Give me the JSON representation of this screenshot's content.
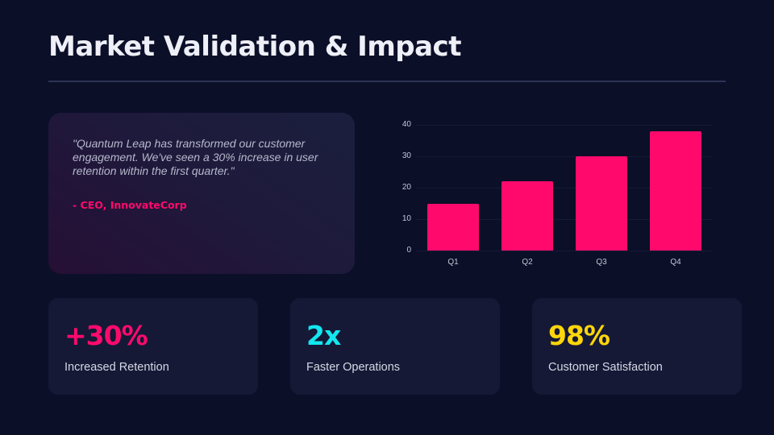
{
  "header": {
    "title": "Market Validation & Impact"
  },
  "testimonial": {
    "quote": "\"Quantum Leap has transformed our customer engagement. We've seen a 30% increase in user retention within the first quarter.\"",
    "author": "- CEO, InnovateCorp"
  },
  "chart_data": {
    "type": "bar",
    "title": "",
    "xlabel": "",
    "ylabel": "",
    "categories": [
      "Q1",
      "Q2",
      "Q3",
      "Q4"
    ],
    "values": [
      15,
      22,
      30,
      38
    ],
    "ylim": [
      0,
      40
    ],
    "yticks": [
      0,
      10,
      20,
      30,
      40
    ],
    "grid": true,
    "legend": false,
    "bar_color": "#ff0a6c"
  },
  "stats": [
    {
      "value": "+30%",
      "label": "Increased Retention",
      "color": "#ff0a6c"
    },
    {
      "value": "2x",
      "label": "Faster Operations",
      "color": "#13e6f0"
    },
    {
      "value": "98%",
      "label": "Customer Satisfaction",
      "color": "#ffd60a"
    }
  ],
  "colors": {
    "background": "#0b0f28",
    "accent_pink": "#ff0a6c",
    "accent_cyan": "#13e6f0",
    "accent_yellow": "#ffd60a",
    "card": "#151936"
  }
}
